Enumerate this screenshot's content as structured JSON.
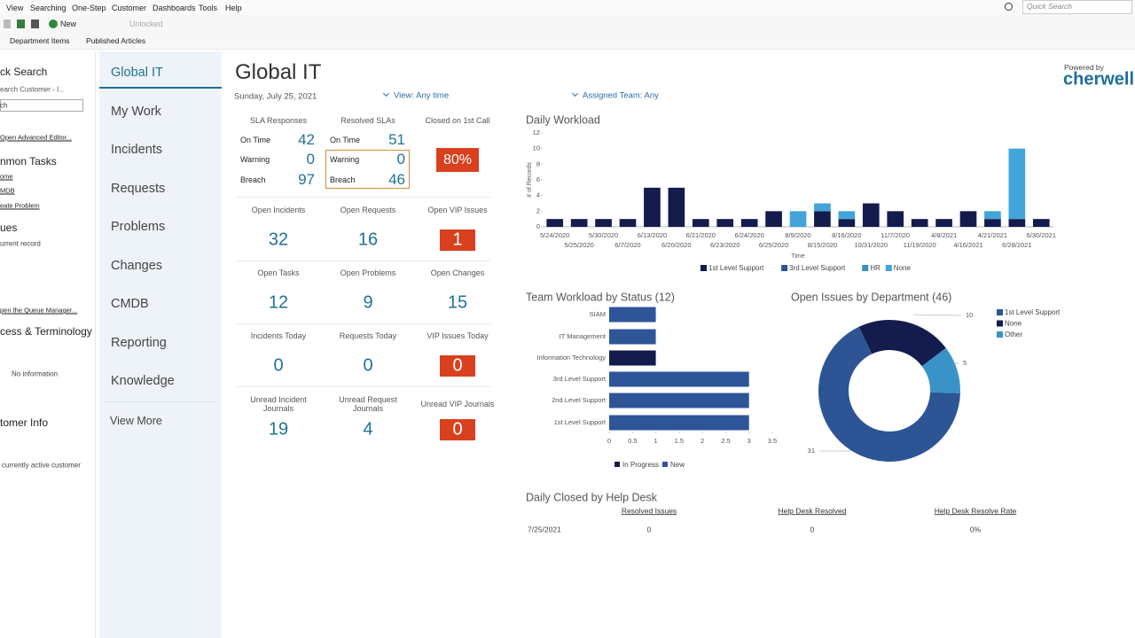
{
  "menu": [
    "View",
    "Searching",
    "One-Step",
    "Customer",
    "Dashboards",
    "Tools",
    "Help"
  ],
  "toolbar": {
    "new": "New",
    "unlocked": "Unlocked",
    "quick_search": "Quick Search"
  },
  "links": [
    "Department Items",
    "Published Articles"
  ],
  "left_panel": [
    "ck Search",
    "earch Customer - I...",
    "ch",
    "Open Advanced Editor...",
    "nmon Tasks",
    "ome",
    "MDB",
    "eate Problem",
    "ues",
    "urrent record",
    "pen the Queue Manager...",
    "cess & Terminology",
    "No information",
    "tomer Info",
    "currently active customer"
  ],
  "nav": {
    "items": [
      "Global IT",
      "My Work",
      "Incidents",
      "Requests",
      "Problems",
      "Changes",
      "CMDB",
      "Reporting",
      "Knowledge"
    ],
    "more": "View More"
  },
  "header": {
    "title": "Global IT",
    "date": "Sunday, July 25, 2021",
    "view_filter": "View: Any time",
    "team_filter": "Assigned Team: Any",
    "powered_by": "Powered by",
    "logo": "cherwell"
  },
  "sla": [
    {
      "title": "SLA Responses",
      "rows": [
        [
          "On Time",
          42
        ],
        [
          "Warning",
          0
        ],
        [
          "Breach",
          97
        ]
      ]
    },
    {
      "title": "Resolved SLAs",
      "rows": [
        [
          "On Time",
          51
        ],
        [
          "Warning",
          0
        ],
        [
          "Breach",
          46
        ]
      ]
    }
  ],
  "first_call": {
    "title": "Closed on 1st Call",
    "value": "80%"
  },
  "tiles": [
    {
      "title": "Open Incidents",
      "value": 32,
      "highlight": false
    },
    {
      "title": "Open Requests",
      "value": 16,
      "highlight": false
    },
    {
      "title": "Open VIP Issues",
      "value": 1,
      "highlight": true
    },
    {
      "title": "Open Tasks",
      "value": 12,
      "highlight": false
    },
    {
      "title": "Open Problems",
      "value": 9,
      "highlight": false
    },
    {
      "title": "Open Changes",
      "value": 15,
      "highlight": false
    },
    {
      "title": "Incidents Today",
      "value": 0,
      "highlight": false
    },
    {
      "title": "Requests Today",
      "value": 0,
      "highlight": false
    },
    {
      "title": "VIP Issues Today",
      "value": 0,
      "highlight": true
    },
    {
      "title": "Unread Incident Journals",
      "value": 19,
      "highlight": false
    },
    {
      "title": "Unread Request Journals",
      "value": 4,
      "highlight": false
    },
    {
      "title": "Unread VIP Journals",
      "value": 0,
      "highlight": true
    }
  ],
  "chart_data": [
    {
      "type": "stacked-bar",
      "title": "Daily Workload",
      "x_label": "Time",
      "y_label": "# of Records",
      "categories": [
        "5/24/2020",
        "5/25/2020",
        "5/30/2020",
        "6/7/2020",
        "6/13/2020",
        "6/20/2020",
        "6/21/2020",
        "6/23/2020",
        "6/24/2020",
        "6/25/2020",
        "8/9/2020",
        "8/15/2020",
        "8/16/2020",
        "10/31/2020",
        "11/7/2020",
        "11/19/2020",
        "4/8/2021",
        "4/16/2021",
        "4/21/2021",
        "6/28/2021",
        "6/30/2021"
      ],
      "series": [
        {
          "name": "1st Level Support",
          "color": "#141b4d",
          "values": [
            1,
            1,
            1,
            1,
            5,
            5,
            1,
            1,
            1,
            2,
            0,
            2,
            1,
            3,
            2,
            1,
            1,
            2,
            1,
            1,
            1
          ]
        },
        {
          "name": "3rd Level Support",
          "color": "#2e5597",
          "values": [
            0,
            0,
            0,
            0,
            0,
            0,
            0,
            0,
            0,
            0,
            0,
            0,
            0,
            0,
            0,
            0,
            0,
            0,
            0,
            0,
            0
          ]
        },
        {
          "name": "HR",
          "color": "#3a8fc4",
          "values": [
            0,
            0,
            0,
            0,
            0,
            0,
            0,
            0,
            0,
            0,
            0,
            0,
            0,
            0,
            0,
            0,
            0,
            0,
            0,
            0,
            0
          ]
        },
        {
          "name": "None",
          "color": "#41a5d9",
          "values": [
            0,
            0,
            0,
            0,
            0,
            0,
            0,
            0,
            0,
            0,
            2,
            1,
            1,
            0,
            0,
            0,
            0,
            0,
            1,
            9,
            0
          ]
        }
      ],
      "ylim": [
        0,
        12
      ],
      "yticks": [
        0,
        2,
        4,
        6,
        8,
        10,
        12
      ],
      "legend": "bottom"
    },
    {
      "type": "stacked-hbar",
      "title": "Team Workload by Status (12)",
      "categories": [
        "SIAM",
        "IT Management",
        "Information Technology",
        "3rd Level Support",
        "2nd Level Support",
        "1st Level Support"
      ],
      "series": [
        {
          "name": "In Progress",
          "color": "#141b4d",
          "values": [
            0,
            0,
            1,
            0,
            0,
            0
          ]
        },
        {
          "name": "New",
          "color": "#2e5597",
          "values": [
            1,
            1,
            0,
            3,
            3,
            3
          ]
        }
      ],
      "xlim": [
        0,
        3.5
      ],
      "xticks": [
        0,
        0.5,
        1,
        1.5,
        2,
        2.5,
        3,
        3.5
      ],
      "legend": "bottom"
    },
    {
      "type": "donut",
      "title": "Open Issues by Department (46)",
      "categories": [
        "1st Level Support",
        "None",
        "Other"
      ],
      "values": [
        31,
        10,
        5
      ],
      "colors": [
        "#2d5596",
        "#141b4d",
        "#3a93c8"
      ],
      "legend": "right"
    }
  ],
  "help_desk": {
    "title": "Daily Closed by Help Desk",
    "headers": [
      "Resolved Issues",
      "Help Desk Resolved",
      "Help Desk Resolve Rate"
    ],
    "rows": [
      [
        "7/25/2021",
        "0",
        "0",
        "0%"
      ]
    ]
  }
}
